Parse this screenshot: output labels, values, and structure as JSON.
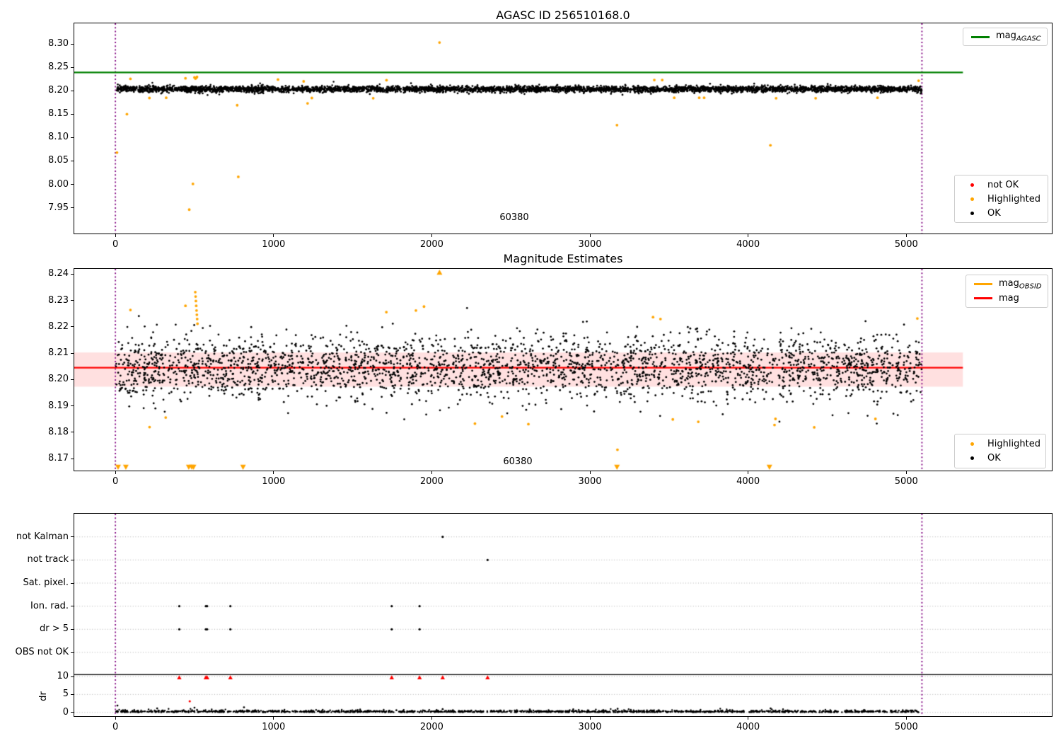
{
  "colors": {
    "mag_agasc_line": "#008000",
    "mag_line": "#ff0000",
    "mag_obsid_line": "#ffa500",
    "highlighted": "#ffa500",
    "not_ok": "#ff0000",
    "ok": "#000000",
    "obsid_vline": "#800080",
    "mag_band_fill": "rgba(255,0,0,0.12)",
    "grid": "#b0b0b0",
    "separator": "#000000"
  },
  "chart_data": [
    {
      "id": "agasc-mag-plot",
      "type": "scatter",
      "title": "AGASC ID 256510168.0",
      "xlim": [
        -260,
        5920
      ],
      "ylim": [
        7.895,
        8.344
      ],
      "xticks": {
        "values": [
          0,
          1000,
          2000,
          3000,
          4000,
          5000
        ],
        "labels": [
          "0",
          "1000",
          "2000",
          "3000",
          "4000",
          "5000"
        ]
      },
      "yticks": {
        "values": [
          8.3,
          8.25,
          8.2,
          8.15,
          8.1,
          8.05,
          8.0,
          7.95
        ],
        "labels": [
          "8.30",
          "8.25",
          "8.20",
          "8.15",
          "8.10",
          "8.05",
          "8.00",
          "7.95"
        ]
      },
      "mag_agasc": 8.239,
      "line_x_extent": [
        -260,
        5358
      ],
      "obsid_vlines": [
        0,
        5099
      ],
      "obsid_text": {
        "label": "60380",
        "x": 2523,
        "y": 7.925
      },
      "ok_scatter": {
        "n": 4000,
        "x_min": 2,
        "x_max": 5098,
        "mean": 8.2035,
        "sigma": 0.0032,
        "fuzz_n": 160,
        "fuzz_sigma": 0.0048,
        "seed": 11
      },
      "highlighted_points": [
        [
          10,
          8.068
        ],
        [
          73,
          8.15
        ],
        [
          95,
          8.2255
        ],
        [
          215,
          8.1845
        ],
        [
          321,
          8.185
        ],
        [
          443,
          8.2266
        ],
        [
          500,
          8.2285
        ],
        [
          506,
          8.226
        ],
        [
          511,
          8.2275
        ],
        [
          516,
          8.2295
        ],
        [
          467,
          7.946
        ],
        [
          490,
          8.001
        ],
        [
          770,
          8.169
        ],
        [
          777,
          8.016
        ],
        [
          1028,
          8.224
        ],
        [
          1190,
          8.22
        ],
        [
          1215,
          8.173
        ],
        [
          1242,
          8.1845
        ],
        [
          1630,
          8.184
        ],
        [
          1714,
          8.2225
        ],
        [
          2049,
          8.303
        ],
        [
          3171,
          8.1265
        ],
        [
          3407,
          8.223
        ],
        [
          3457,
          8.223
        ],
        [
          3533,
          8.185
        ],
        [
          3691,
          8.185
        ],
        [
          3722,
          8.185
        ],
        [
          4141,
          8.0835
        ],
        [
          4177,
          8.184
        ],
        [
          4427,
          8.184
        ],
        [
          4818,
          8.185
        ],
        [
          5078,
          8.2215
        ]
      ],
      "not_ok_points": [],
      "legend_line_items": [
        {
          "marker": "line",
          "color_key": "mag_agasc_line",
          "label": "mag",
          "sub": "AGASC"
        }
      ],
      "legend_point_items": [
        {
          "marker": "dot",
          "color_key": "not_ok",
          "label": "not OK"
        },
        {
          "marker": "dot",
          "color_key": "highlighted",
          "label": "Highlighted"
        },
        {
          "marker": "dot",
          "color_key": "ok",
          "label": "OK"
        }
      ]
    },
    {
      "id": "magnitude-estimates-plot",
      "type": "scatter",
      "title": "Magnitude Estimates",
      "xlim": [
        -260,
        5920
      ],
      "ylim": [
        8.1655,
        8.242
      ],
      "xticks": {
        "values": [
          0,
          1000,
          2000,
          3000,
          4000,
          5000
        ],
        "labels": [
          "0",
          "1000",
          "2000",
          "3000",
          "4000",
          "5000"
        ]
      },
      "yticks": {
        "values": [
          8.24,
          8.23,
          8.22,
          8.21,
          8.2,
          8.19,
          8.18,
          8.17
        ],
        "labels": [
          "8.24",
          "8.23",
          "8.22",
          "8.21",
          "8.20",
          "8.19",
          "8.18",
          "8.17"
        ]
      },
      "mag": 8.2045,
      "mag_band": [
        8.1973,
        8.2103
      ],
      "line_x_extent": [
        -260,
        5358
      ],
      "obsid_vlines": [
        0,
        5099
      ],
      "obsid_text": {
        "label": "60380",
        "x": 2545,
        "y": 8.169
      },
      "ok_scatter": {
        "n": 2800,
        "x_min": 2,
        "x_max": 5098,
        "mean": 8.2045,
        "sigma": 0.006,
        "fuzz_n": 0,
        "fuzz_sigma": 0,
        "seed": 23
      },
      "highlighted_points": [
        [
          95,
          8.2264
        ],
        [
          216,
          8.182
        ],
        [
          318,
          8.1856
        ],
        [
          443,
          8.228
        ],
        [
          505,
          8.2332
        ],
        [
          507,
          8.2315
        ],
        [
          509,
          8.2298
        ],
        [
          511,
          8.228
        ],
        [
          513,
          8.2262
        ],
        [
          515,
          8.2246
        ],
        [
          517,
          8.223
        ],
        [
          519,
          8.2212
        ],
        [
          1713,
          8.2256
        ],
        [
          1900,
          8.2262
        ],
        [
          1951,
          8.2277
        ],
        [
          2273,
          8.1833
        ],
        [
          2444,
          8.186
        ],
        [
          2611,
          8.1831
        ],
        [
          3174,
          8.1734
        ],
        [
          3399,
          8.2237
        ],
        [
          3446,
          8.223
        ],
        [
          3524,
          8.1849
        ],
        [
          3685,
          8.184
        ],
        [
          4167,
          8.1828
        ],
        [
          4173,
          8.1851
        ],
        [
          4418,
          8.1819
        ],
        [
          4805,
          8.1851
        ],
        [
          5070,
          8.2232
        ]
      ],
      "clipped_high_x": [
        2049
      ],
      "clipped_low_x": [
        17,
        66,
        464,
        483,
        494,
        807,
        3171,
        4135
      ],
      "legend_line_items": [
        {
          "marker": "line",
          "color_key": "mag_obsid_line",
          "label": "mag",
          "sub": "OBSID"
        },
        {
          "marker": "line",
          "color_key": "mag_line",
          "label": "mag"
        }
      ],
      "legend_point_items": [
        {
          "marker": "dot",
          "color_key": "highlighted",
          "label": "Highlighted"
        },
        {
          "marker": "dot",
          "color_key": "ok",
          "label": "OK"
        }
      ]
    },
    {
      "id": "flags-dr-plot",
      "type": "scatter",
      "xlim": [
        -260,
        5920
      ],
      "xticks": {
        "values": [
          0,
          1000,
          2000,
          3000,
          4000,
          5000
        ],
        "labels": [
          "0",
          "1000",
          "2000",
          "3000",
          "4000",
          "5000"
        ]
      },
      "flag_rows": [
        {
          "label": "not Kalman",
          "x": [
            2069
          ]
        },
        {
          "label": "not track",
          "x": [
            2353
          ]
        },
        {
          "label": "Sat. pixel.",
          "x": []
        },
        {
          "label": "Ion. rad.",
          "x": [
            404,
            572,
            580,
            727,
            1747,
            1923
          ]
        },
        {
          "label": "dr > 5",
          "x": [
            404,
            572,
            580,
            727,
            1747,
            1923
          ]
        },
        {
          "label": "OBS not OK",
          "x": []
        }
      ],
      "dr_axis": {
        "label": "dr",
        "ticks": {
          "values": [
            10,
            5,
            0
          ],
          "labels": [
            "10",
            "5",
            "0"
          ]
        }
      },
      "separator_dr": 10.5,
      "obsid_vlines": [
        0,
        5099
      ],
      "dr_scatter": {
        "n": 1400,
        "x_min": 2,
        "x_max": 5098,
        "sigma": 0.28,
        "seed": 7
      },
      "dr_elevated_points": [
        [
          13,
          1.9
        ],
        [
          264,
          1.1
        ],
        [
          500,
          1.3
        ],
        [
          813,
          1.4
        ],
        [
          2069,
          0.9
        ],
        [
          2620,
          0.8
        ],
        [
          3175,
          1.0
        ],
        [
          4142,
          1.1
        ]
      ],
      "dr_not_ok_points": [
        [
          470,
          3.1
        ]
      ],
      "dr_clipped_x": [
        404,
        572,
        580,
        727,
        1747,
        1923,
        2069,
        2353
      ]
    }
  ]
}
